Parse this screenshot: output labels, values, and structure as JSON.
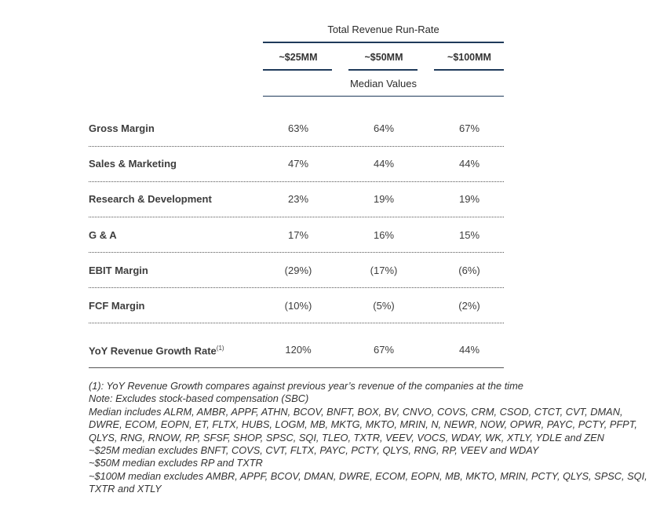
{
  "header": {
    "title": "Total Revenue Run-Rate",
    "columns": [
      "~$25MM",
      "~$50MM",
      "~$100MM"
    ],
    "subtitle": "Median Values"
  },
  "rows": [
    {
      "label": "Gross Margin",
      "values": [
        "63%",
        "64%",
        "67%"
      ]
    },
    {
      "label": "Sales & Marketing",
      "values": [
        "47%",
        "44%",
        "44%"
      ]
    },
    {
      "label": "Research & Development",
      "values": [
        "23%",
        "19%",
        "19%"
      ]
    },
    {
      "label": "G & A",
      "values": [
        "17%",
        "16%",
        "15%"
      ]
    },
    {
      "label": "EBIT Margin",
      "values": [
        "(29%)",
        "(17%)",
        "(6%)"
      ]
    },
    {
      "label": "FCF Margin",
      "values": [
        "(10%)",
        "(5%)",
        "(2%)"
      ]
    },
    {
      "label": "YoY Revenue Growth Rate",
      "footnote_marker": "(1)",
      "values": [
        "120%",
        "67%",
        "44%"
      ]
    }
  ],
  "notes": [
    "(1): YoY Revenue Growth compares against previous year’s revenue of the companies at the time",
    "Note: Excludes stock-based compensation (SBC)",
    "Median includes ALRM, AMBR, APPF, ATHN, BCOV, BNFT, BOX, BV, CNVO, COVS, CRM, CSOD, CTCT, CVT, DMAN, DWRE, ECOM, EOPN, ET, FLTX, HUBS, LOGM, MB, MKTG, MKTO, MRIN, N, NEWR, NOW, OPWR, PAYC, PCTY, PFPT, QLYS, RNG, RNOW, RP, SFSF, SHOP, SPSC, SQI, TLEO, TXTR, VEEV, VOCS, WDAY, WK, XTLY, YDLE and ZEN",
    "~$25M median excludes BNFT, COVS, CVT, FLTX, PAYC, PCTY, QLYS, RNG, RP, VEEV and WDAY",
    "~$50M median excludes RP and TXTR",
    "~$100M median excludes AMBR, APPF, BCOV, DMAN, DWRE, ECOM, EOPN, MB, MKTO, MRIN, PCTY, QLYS, SPSC, SQI, TXTR and XTLY"
  ]
}
